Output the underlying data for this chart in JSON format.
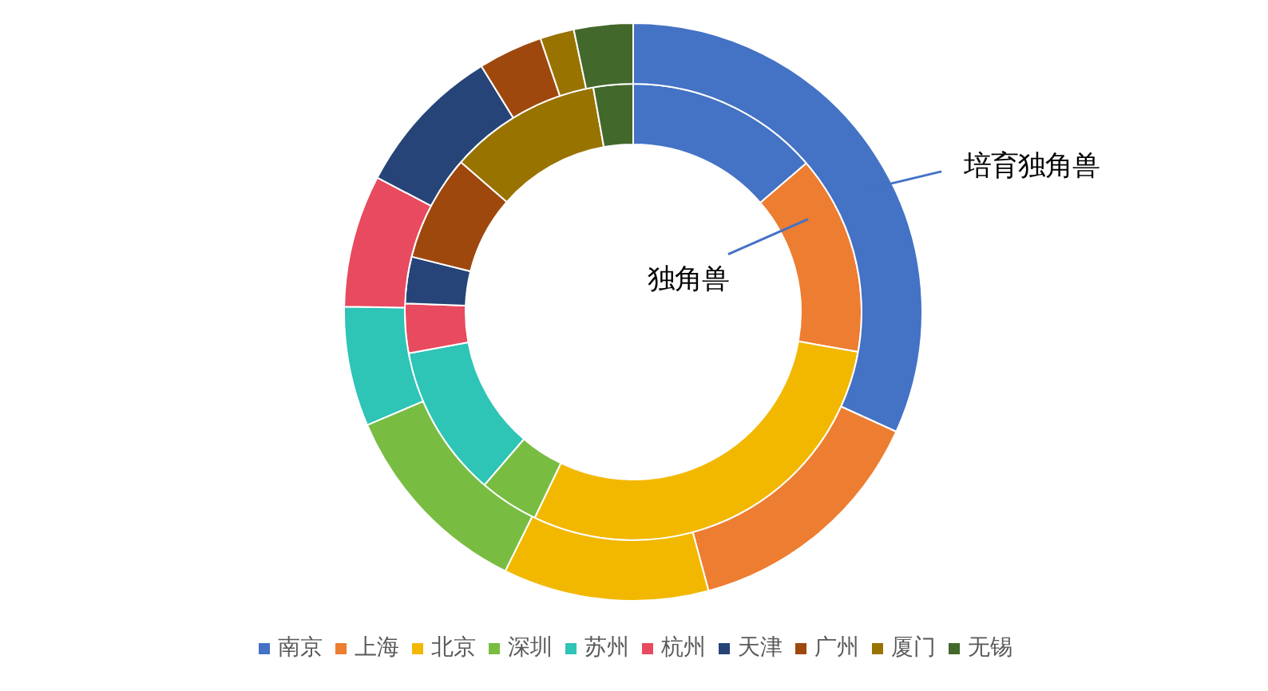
{
  "chart_data": {
    "type": "donut",
    "categories": [
      "南京",
      "上海",
      "北京",
      "深圳",
      "苏州",
      "杭州",
      "天津",
      "广州",
      "厦门",
      "无锡"
    ],
    "colors": [
      "#4472c4",
      "#ed7d31",
      "#f2b800",
      "#78bd42",
      "#2ec4b6",
      "#e84a5f",
      "#264478",
      "#9e480e",
      "#997300",
      "#43682b"
    ],
    "series": [
      {
        "name": "独角兽",
        "values": [
          13.7,
          14.1,
          29.3,
          4.2,
          10.8,
          3.5,
          3.3,
          7.5,
          10.8,
          2.8
        ]
      },
      {
        "name": "培育独角兽",
        "values": [
          31.8,
          14.0,
          11.5,
          11.3,
          6.7,
          7.4,
          8.5,
          3.6,
          1.9,
          3.3
        ]
      }
    ],
    "legend": "bottom"
  }
}
